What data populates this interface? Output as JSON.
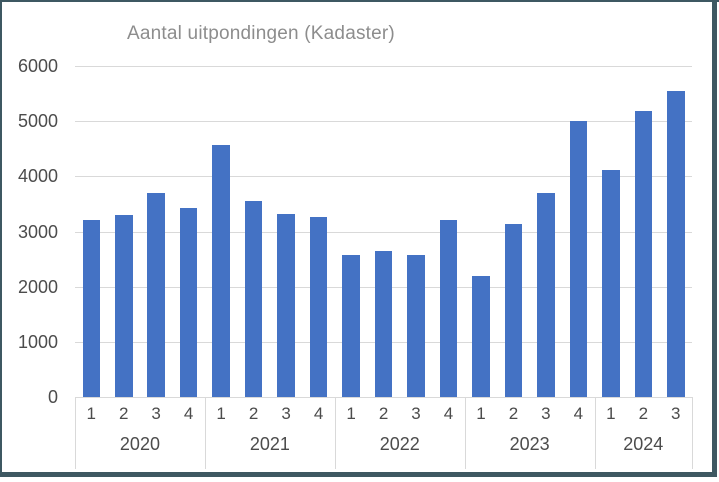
{
  "window": {
    "border_color": "#3e5862",
    "background_color": "#ffffff"
  },
  "chart_data": {
    "type": "bar",
    "title": "Aantal uitpondingen (Kadaster)",
    "xlabel": "",
    "ylabel": "",
    "ylim": [
      0,
      6000
    ],
    "yticks": [
      0,
      1000,
      2000,
      3000,
      4000,
      5000,
      6000
    ],
    "grid": true,
    "legend_position": "none",
    "bar_color": "#4472C4",
    "gridline_color": "#d9d9d9",
    "title_color": "#8d8d8d",
    "tick_label_color": "#4c4c4c",
    "groups": [
      {
        "year": "2020",
        "quarters": [
          "1",
          "2",
          "3",
          "4"
        ],
        "values": [
          3200,
          3300,
          3690,
          3430
        ]
      },
      {
        "year": "2021",
        "quarters": [
          "1",
          "2",
          "3",
          "4"
        ],
        "values": [
          4570,
          3560,
          3320,
          3270
        ]
      },
      {
        "year": "2022",
        "quarters": [
          "1",
          "2",
          "3",
          "4"
        ],
        "values": [
          2570,
          2650,
          2570,
          3210
        ]
      },
      {
        "year": "2023",
        "quarters": [
          "1",
          "2",
          "3",
          "4"
        ],
        "values": [
          2200,
          3130,
          3690,
          5000
        ]
      },
      {
        "year": "2024",
        "quarters": [
          "1",
          "2",
          "3"
        ],
        "values": [
          4120,
          5190,
          5540
        ]
      }
    ]
  }
}
